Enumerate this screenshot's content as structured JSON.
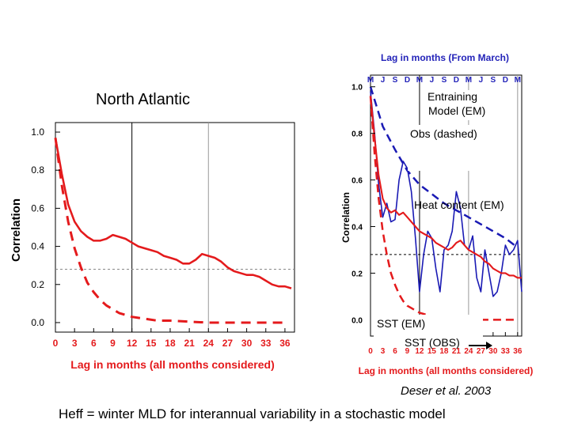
{
  "slide": {
    "title_left": "North Atlantic",
    "label_entraining": "Entraining",
    "label_entraining_model": "Model (EM)",
    "label_obs_dashed": "Obs (dashed)",
    "label_heat_content": "Heat content (EM)",
    "label_sst_em": "SST (EM)",
    "label_sst_obs": "SST (OBS)",
    "citation": "Deser et al. 2003",
    "caption": "Heff = winter MLD for interannual variability in a stochastic model"
  },
  "colors": {
    "red": "#e41a1c",
    "blue": "#1a1ab4",
    "axis_label_red": "#e41a1c",
    "top_axis_blue": "#2323b9"
  },
  "chart_data": [
    {
      "type": "line",
      "title": "",
      "xlabel": "Lag in months (all months considered)",
      "ylabel": "Correlation",
      "xlim": [
        0,
        37.5
      ],
      "ylim": [
        -0.05,
        1.05
      ],
      "xticks": [
        0,
        3,
        6,
        9,
        12,
        15,
        18,
        21,
        24,
        27,
        30,
        33,
        36
      ],
      "yticks": [
        0.0,
        0.2,
        0.4,
        0.6,
        0.8,
        1.0
      ],
      "ytick_labels": [
        "0.0",
        "0.2",
        "0.4",
        "0.6",
        "0.8",
        "1.0"
      ],
      "vlines": [
        12,
        24
      ],
      "hline": 0.28,
      "grid": false,
      "series": [
        {
          "style": "solid",
          "color": "#e41a1c",
          "x": [
            0,
            1,
            2,
            3,
            4,
            5,
            6,
            7,
            8,
            9,
            10,
            11,
            12,
            13,
            14,
            15,
            16,
            17,
            18,
            19,
            20,
            21,
            22,
            23,
            24,
            25,
            26,
            27,
            28,
            29,
            30,
            31,
            32,
            33,
            34,
            35,
            36,
            37
          ],
          "y": [
            0.97,
            0.78,
            0.62,
            0.53,
            0.48,
            0.45,
            0.43,
            0.43,
            0.44,
            0.46,
            0.45,
            0.44,
            0.42,
            0.4,
            0.39,
            0.38,
            0.37,
            0.35,
            0.34,
            0.33,
            0.31,
            0.31,
            0.33,
            0.36,
            0.35,
            0.34,
            0.32,
            0.29,
            0.27,
            0.26,
            0.25,
            0.25,
            0.24,
            0.22,
            0.2,
            0.19,
            0.19,
            0.18
          ]
        },
        {
          "style": "dashed",
          "color": "#e41a1c",
          "x": [
            0,
            1,
            2,
            3,
            4,
            5,
            6,
            7,
            8,
            9,
            10,
            11,
            12,
            14,
            16,
            18,
            21,
            24,
            27,
            30,
            33,
            36
          ],
          "y": [
            0.97,
            0.72,
            0.53,
            0.39,
            0.29,
            0.21,
            0.16,
            0.12,
            0.09,
            0.07,
            0.05,
            0.04,
            0.03,
            0.02,
            0.01,
            0.01,
            0.005,
            0.0,
            0.0,
            0.0,
            0.0,
            0.0
          ]
        }
      ]
    },
    {
      "type": "line",
      "title": "Lag in months (From March)",
      "xlabel": "Lag in months (all months considered)",
      "ylabel": "Correlation",
      "xlim": [
        0,
        37
      ],
      "ylim": [
        -0.07,
        1.05
      ],
      "xticks": [
        0,
        3,
        6,
        9,
        12,
        15,
        18,
        21,
        24,
        27,
        30,
        33,
        36
      ],
      "yticks": [
        0.2,
        0.4,
        0.6,
        0.8,
        1.0
      ],
      "ytick_labels": [
        "0.2",
        "0.4",
        "0.6",
        "0.8",
        "1.0"
      ],
      "ytick_zero_label": "0.0",
      "top_axis_months": [
        "M",
        "J",
        "S",
        "D",
        "M",
        "J",
        "S",
        "D",
        "M",
        "J",
        "S",
        "D",
        "M"
      ],
      "vlines": [
        12,
        24,
        36
      ],
      "hline": 0.28,
      "series": [
        {
          "style": "dashed",
          "color": "#1a1ab4",
          "x": [
            0,
            3,
            6,
            9,
            12,
            15,
            18,
            21,
            24,
            27,
            30,
            33,
            36
          ],
          "y": [
            1.0,
            0.83,
            0.73,
            0.64,
            0.58,
            0.54,
            0.5,
            0.47,
            0.44,
            0.41,
            0.38,
            0.35,
            0.31
          ]
        },
        {
          "style": "solid",
          "color": "#1a1ab4",
          "x": [
            0,
            1,
            2,
            3,
            4,
            5,
            6,
            7,
            8,
            9,
            10,
            11,
            12,
            13,
            14,
            15,
            16,
            17,
            18,
            19,
            20,
            21,
            22,
            23,
            24,
            25,
            26,
            27,
            28,
            29,
            30,
            31,
            32,
            33,
            34,
            35,
            36,
            37
          ],
          "y": [
            0.98,
            0.8,
            0.58,
            0.44,
            0.5,
            0.42,
            0.43,
            0.6,
            0.68,
            0.65,
            0.55,
            0.35,
            0.12,
            0.28,
            0.38,
            0.35,
            0.22,
            0.12,
            0.3,
            0.32,
            0.38,
            0.55,
            0.48,
            0.32,
            0.3,
            0.36,
            0.18,
            0.12,
            0.3,
            0.2,
            0.1,
            0.12,
            0.2,
            0.32,
            0.28,
            0.3,
            0.34,
            0.12
          ]
        },
        {
          "style": "solid",
          "color": "#e41a1c",
          "x": [
            0,
            1,
            2,
            3,
            4,
            5,
            6,
            7,
            8,
            9,
            10,
            11,
            12,
            13,
            14,
            15,
            16,
            17,
            18,
            19,
            20,
            21,
            22,
            23,
            24,
            25,
            26,
            27,
            28,
            29,
            30,
            31,
            32,
            33,
            34,
            35,
            36,
            37
          ],
          "y": [
            0.96,
            0.78,
            0.62,
            0.52,
            0.48,
            0.46,
            0.47,
            0.45,
            0.46,
            0.44,
            0.42,
            0.4,
            0.38,
            0.37,
            0.36,
            0.35,
            0.33,
            0.32,
            0.31,
            0.3,
            0.31,
            0.33,
            0.34,
            0.32,
            0.3,
            0.29,
            0.28,
            0.27,
            0.25,
            0.24,
            0.22,
            0.21,
            0.2,
            0.2,
            0.19,
            0.19,
            0.18,
            0.18
          ]
        },
        {
          "style": "dashed",
          "color": "#e41a1c",
          "x": [
            0,
            1,
            2,
            3,
            4,
            5,
            6,
            7,
            8,
            9,
            10,
            11,
            12,
            14,
            16,
            18,
            21,
            24,
            27,
            30,
            33,
            36
          ],
          "y": [
            0.96,
            0.71,
            0.52,
            0.38,
            0.28,
            0.2,
            0.15,
            0.11,
            0.08,
            0.06,
            0.05,
            0.04,
            0.03,
            0.02,
            0.01,
            0.01,
            0.005,
            0.0,
            0.0,
            0.0,
            0.0,
            0.0
          ]
        }
      ]
    }
  ]
}
